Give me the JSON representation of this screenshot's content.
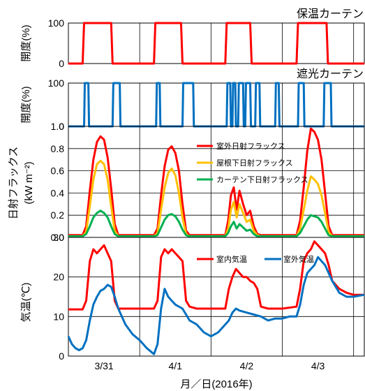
{
  "chart_data": [
    {
      "type": "line",
      "title": "保温カーテン",
      "ylabel": "開度(%)",
      "ylim": [
        0,
        100
      ],
      "yticks": [
        "0",
        "100"
      ],
      "series": [
        {
          "name": "保温カーテン",
          "color": "#ff0000",
          "x": [
            0,
            0.2,
            0.22,
            0.6,
            0.62,
            1.2,
            1.22,
            1.58,
            1.6,
            2.2,
            2.22,
            2.55,
            2.57,
            3.2,
            3.22,
            3.62,
            3.64,
            4.15
          ],
          "values": [
            0,
            0,
            100,
            100,
            0,
            0,
            100,
            100,
            0,
            0,
            100,
            100,
            0,
            0,
            100,
            100,
            0,
            0
          ]
        }
      ]
    },
    {
      "type": "line",
      "title": "遮光カーテン",
      "ylabel": "開度(%)",
      "ylim": [
        0,
        100
      ],
      "yticks": [
        "0",
        "100"
      ],
      "series": [
        {
          "name": "遮光カーテン",
          "color": "#0070c0",
          "x": [
            0,
            0.22,
            0.23,
            0.28,
            0.29,
            0.62,
            0.63,
            0.72,
            0.73,
            1.23,
            1.24,
            1.28,
            1.29,
            1.6,
            1.61,
            1.75,
            1.76,
            2.22,
            2.23,
            2.27,
            2.28,
            2.3,
            2.31,
            2.34,
            2.35,
            2.38,
            2.39,
            2.45,
            2.46,
            2.48,
            2.49,
            2.55,
            2.56,
            2.62,
            2.63,
            2.68,
            2.69,
            2.9,
            2.91,
            2.95,
            2.96,
            3.22,
            3.23,
            3.3,
            3.31,
            3.58,
            3.59,
            3.68,
            3.69,
            4.15
          ],
          "values": [
            0,
            0,
            100,
            100,
            0,
            0,
            100,
            100,
            0,
            0,
            100,
            100,
            0,
            0,
            100,
            100,
            0,
            0,
            100,
            100,
            0,
            0,
            100,
            100,
            0,
            0,
            100,
            100,
            0,
            0,
            100,
            100,
            0,
            0,
            100,
            100,
            0,
            0,
            100,
            100,
            0,
            0,
            100,
            100,
            0,
            0,
            100,
            100,
            0,
            0
          ]
        }
      ]
    },
    {
      "type": "line",
      "ylabel": "日射フラックス",
      "yunit": "(kW m⁻²)",
      "ylim": [
        0,
        1.0
      ],
      "yticks": [
        "0.0",
        "0.2",
        "0.4",
        "0.6",
        "0.8",
        "1.0"
      ],
      "legend": "top-right",
      "series": [
        {
          "name": "室外日射フラックス",
          "color": "#ff0000",
          "x": [
            0,
            0.2,
            0.25,
            0.3,
            0.35,
            0.4,
            0.45,
            0.5,
            0.55,
            0.6,
            0.65,
            0.7,
            0.8,
            1.0,
            1.2,
            1.25,
            1.3,
            1.35,
            1.4,
            1.45,
            1.5,
            1.55,
            1.6,
            1.65,
            1.7,
            1.8,
            2.0,
            2.2,
            2.24,
            2.28,
            2.32,
            2.36,
            2.4,
            2.45,
            2.5,
            2.55,
            2.6,
            2.65,
            2.7,
            2.8,
            3.0,
            3.2,
            3.25,
            3.3,
            3.35,
            3.4,
            3.45,
            3.5,
            3.55,
            3.6,
            3.65,
            3.7,
            3.8,
            4.0,
            4.15
          ],
          "values": [
            0.02,
            0.02,
            0.1,
            0.42,
            0.7,
            0.86,
            0.91,
            0.88,
            0.72,
            0.44,
            0.12,
            0.02,
            0.02,
            0.02,
            0.02,
            0.08,
            0.38,
            0.64,
            0.79,
            0.82,
            0.76,
            0.6,
            0.3,
            0.06,
            0.02,
            0.02,
            0.02,
            0.02,
            0.15,
            0.38,
            0.45,
            0.25,
            0.42,
            0.3,
            0.2,
            0.24,
            0.1,
            0.03,
            0.02,
            0.02,
            0.02,
            0.02,
            0.15,
            0.45,
            0.78,
            0.98,
            0.95,
            0.88,
            0.7,
            0.4,
            0.1,
            0.02,
            0.02,
            0.02,
            0.02
          ]
        },
        {
          "name": "屋根下日射フラックス",
          "color": "#ffc000",
          "x": [
            0,
            0.2,
            0.25,
            0.3,
            0.35,
            0.4,
            0.45,
            0.5,
            0.55,
            0.6,
            0.65,
            0.7,
            0.8,
            1.0,
            1.2,
            1.25,
            1.3,
            1.35,
            1.4,
            1.45,
            1.5,
            1.55,
            1.6,
            1.65,
            1.7,
            1.8,
            2.0,
            2.2,
            2.24,
            2.28,
            2.32,
            2.36,
            2.4,
            2.45,
            2.5,
            2.55,
            2.6,
            2.65,
            2.7,
            2.8,
            3.0,
            3.2,
            3.25,
            3.3,
            3.35,
            3.4,
            3.45,
            3.5,
            3.55,
            3.6,
            3.65,
            3.7,
            3.8,
            4.0,
            4.15
          ],
          "values": [
            0.01,
            0.01,
            0.05,
            0.28,
            0.52,
            0.66,
            0.69,
            0.66,
            0.52,
            0.28,
            0.06,
            0.01,
            0.01,
            0.01,
            0.01,
            0.04,
            0.25,
            0.45,
            0.58,
            0.62,
            0.56,
            0.4,
            0.18,
            0.03,
            0.01,
            0.01,
            0.01,
            0.01,
            0.08,
            0.25,
            0.32,
            0.18,
            0.3,
            0.22,
            0.14,
            0.16,
            0.06,
            0.02,
            0.01,
            0.01,
            0.01,
            0.01,
            0.08,
            0.25,
            0.42,
            0.55,
            0.52,
            0.48,
            0.38,
            0.22,
            0.05,
            0.01,
            0.01,
            0.01,
            0.01
          ]
        },
        {
          "name": "カーテン下日射フラックス",
          "color": "#00b050",
          "x": [
            0,
            0.2,
            0.25,
            0.3,
            0.35,
            0.4,
            0.45,
            0.5,
            0.55,
            0.6,
            0.65,
            0.7,
            0.8,
            1.0,
            1.2,
            1.25,
            1.3,
            1.35,
            1.4,
            1.45,
            1.5,
            1.55,
            1.6,
            1.65,
            1.7,
            1.8,
            2.0,
            2.2,
            2.24,
            2.28,
            2.32,
            2.36,
            2.4,
            2.45,
            2.5,
            2.55,
            2.6,
            2.65,
            2.7,
            2.8,
            3.0,
            3.2,
            3.25,
            3.3,
            3.35,
            3.4,
            3.45,
            3.5,
            3.55,
            3.6,
            3.65,
            3.7,
            3.8,
            4.0,
            4.15
          ],
          "values": [
            0.01,
            0.01,
            0.03,
            0.1,
            0.18,
            0.22,
            0.24,
            0.22,
            0.18,
            0.1,
            0.03,
            0.01,
            0.01,
            0.01,
            0.01,
            0.02,
            0.09,
            0.16,
            0.2,
            0.21,
            0.19,
            0.14,
            0.07,
            0.02,
            0.01,
            0.01,
            0.01,
            0.01,
            0.04,
            0.1,
            0.14,
            0.08,
            0.12,
            0.09,
            0.06,
            0.07,
            0.03,
            0.01,
            0.01,
            0.01,
            0.01,
            0.01,
            0.04,
            0.1,
            0.16,
            0.2,
            0.19,
            0.18,
            0.14,
            0.08,
            0.02,
            0.01,
            0.01,
            0.01,
            0.01
          ]
        }
      ]
    },
    {
      "type": "line",
      "ylabel": "気温(℃)",
      "ylim": [
        0,
        30
      ],
      "yticks": [
        "0",
        "10",
        "20",
        "30"
      ],
      "legend": "top-right",
      "series": [
        {
          "name": "室内気温",
          "color": "#ff0000",
          "x": [
            0,
            0.1,
            0.2,
            0.25,
            0.3,
            0.35,
            0.4,
            0.45,
            0.5,
            0.55,
            0.6,
            0.65,
            0.7,
            0.8,
            1.0,
            1.2,
            1.25,
            1.3,
            1.35,
            1.4,
            1.45,
            1.5,
            1.55,
            1.6,
            1.65,
            1.7,
            1.8,
            2.0,
            2.2,
            2.25,
            2.3,
            2.35,
            2.4,
            2.45,
            2.5,
            2.55,
            2.6,
            2.65,
            2.7,
            2.8,
            3.0,
            3.2,
            3.25,
            3.3,
            3.35,
            3.4,
            3.45,
            3.5,
            3.55,
            3.6,
            3.65,
            3.7,
            3.8,
            3.9,
            4.0,
            4.15
          ],
          "values": [
            11.8,
            11.8,
            11.8,
            14,
            24,
            27,
            26,
            27,
            28,
            26,
            24,
            14,
            12,
            12,
            12,
            12,
            14,
            25,
            27,
            26,
            27,
            26,
            25,
            24,
            14,
            12.5,
            12,
            12,
            12,
            17,
            20,
            22,
            21,
            20,
            20,
            19,
            18.5,
            17,
            12.5,
            12,
            12,
            12.5,
            17,
            24,
            26,
            27,
            29,
            28,
            27,
            26,
            23,
            19,
            17,
            16,
            15.5,
            15.5
          ]
        },
        {
          "name": "室外気温",
          "color": "#0070c0",
          "x": [
            0,
            0.05,
            0.1,
            0.15,
            0.2,
            0.25,
            0.3,
            0.35,
            0.4,
            0.45,
            0.5,
            0.55,
            0.6,
            0.65,
            0.7,
            0.8,
            0.9,
            1.0,
            1.1,
            1.2,
            1.25,
            1.3,
            1.35,
            1.4,
            1.45,
            1.5,
            1.6,
            1.7,
            1.8,
            1.9,
            2.0,
            2.1,
            2.2,
            2.25,
            2.3,
            2.35,
            2.4,
            2.5,
            2.6,
            2.7,
            2.8,
            2.9,
            3.0,
            3.1,
            3.2,
            3.25,
            3.3,
            3.35,
            3.4,
            3.45,
            3.5,
            3.55,
            3.6,
            3.65,
            3.7,
            3.8,
            3.9,
            4.0,
            4.15
          ],
          "values": [
            5,
            3,
            2,
            1.5,
            2,
            4,
            9,
            13,
            15,
            16.5,
            17,
            18,
            17.5,
            15,
            12,
            8,
            5.5,
            4,
            2,
            0.5,
            3,
            12,
            17,
            15,
            14,
            13,
            12,
            9,
            8,
            6,
            5,
            6,
            8,
            9,
            11,
            12,
            11.5,
            11,
            10.5,
            10,
            9,
            9.5,
            9.5,
            10,
            10,
            13,
            18,
            21,
            22,
            23,
            25,
            24,
            23,
            21,
            19,
            16,
            15,
            15,
            15.5
          ]
        }
      ]
    }
  ],
  "x_axis": {
    "label": "月／日(2016年)",
    "ticks": [
      {
        "x": 0.5,
        "label": "3/31"
      },
      {
        "x": 1.5,
        "label": "4/1"
      },
      {
        "x": 2.5,
        "label": "4/2"
      },
      {
        "x": 3.5,
        "label": "4/3"
      }
    ],
    "xlim": [
      0,
      4.15
    ],
    "gridlines": [
      0,
      1,
      2,
      3,
      4
    ]
  }
}
